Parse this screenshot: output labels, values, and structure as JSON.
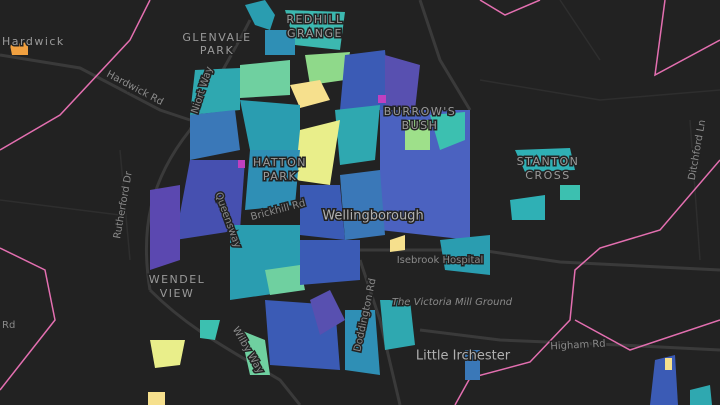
{
  "map": {
    "places": [
      "Hardwick",
      "GLENVALE",
      "PARK",
      "REDHILL",
      "GRANGE",
      "BURROW'S",
      "BUSH",
      "HATTON",
      "PARK",
      "Wellingborough",
      "WENDEL",
      "VIEW",
      "STANTON",
      "CROSS",
      "Little Irchester"
    ],
    "roads": [
      "Hardwick Rd",
      "Niort Way",
      "Rutherford Dr",
      "Queensway",
      "Brickhill Rd",
      "Isebrook Hospital",
      "The Victoria Mill Ground",
      "Doddington Rd",
      "Wilby Way",
      "Higham Rd",
      "Ditchford Ln",
      "Rd"
    ]
  }
}
